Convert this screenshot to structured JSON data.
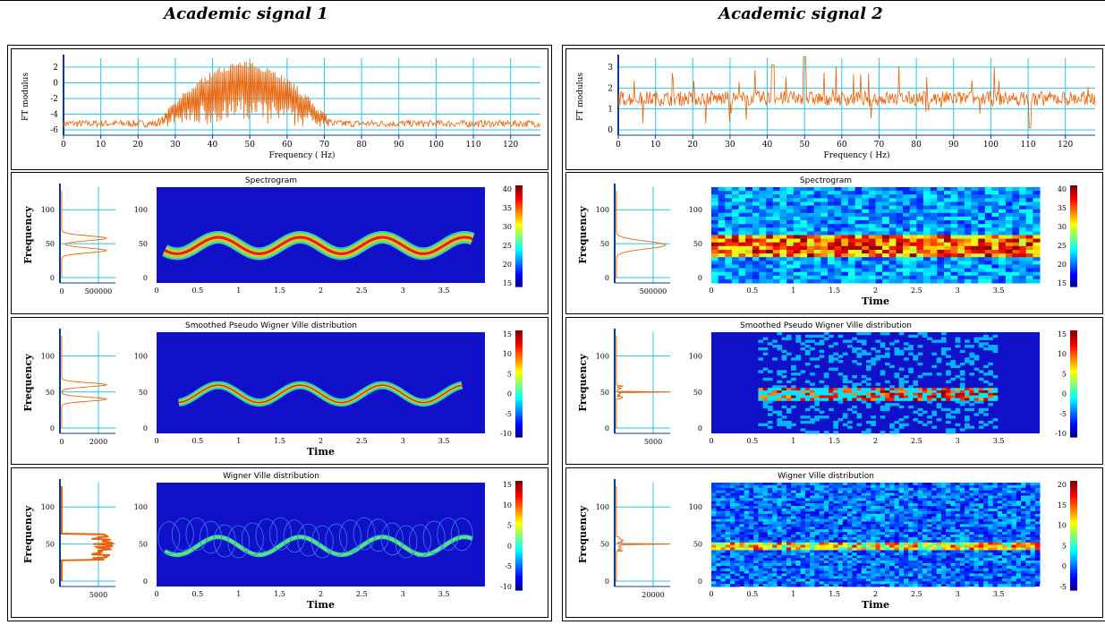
{
  "columns": [
    {
      "title": "Academic signal 1",
      "ft": {
        "ylabel": "FT modulus",
        "xlabel": "Frequency ( Hz)",
        "yticks": [
          "2",
          "0",
          "-2",
          "-4",
          "-6"
        ],
        "xticks": [
          "0",
          "10",
          "20",
          "30",
          "40",
          "50",
          "60",
          "70",
          "80",
          "90",
          "100",
          "110",
          "120"
        ]
      },
      "rows": [
        {
          "title": "Spectrogram",
          "ylabel": "Frequency",
          "xlabel": "",
          "marg_yticks": [
            "100",
            "50",
            "0"
          ],
          "marg_xticks": [
            "0",
            "500000"
          ],
          "tfr_yticks": [
            "100",
            "50",
            "0"
          ],
          "tfr_xticks": [
            "0",
            "0.5",
            "1",
            "1.5",
            "2",
            "2.5",
            "3",
            "3.5"
          ],
          "cbar_ticks": [
            "40",
            "35",
            "30",
            "25",
            "20",
            "15"
          ]
        },
        {
          "title": "Smoothed Pseudo Wigner Ville distribution",
          "ylabel": "Frequency",
          "xlabel": "Time",
          "marg_yticks": [
            "100",
            "50",
            "0"
          ],
          "marg_xticks": [
            "0",
            "2000"
          ],
          "tfr_yticks": [
            "100",
            "50",
            "0"
          ],
          "tfr_xticks": [
            "0",
            "0.5",
            "1",
            "1.5",
            "2",
            "2.5",
            "3",
            "3.5"
          ],
          "cbar_ticks": [
            "15",
            "10",
            "5",
            "0",
            "-5",
            "-10"
          ]
        },
        {
          "title": "Wigner Ville distribution",
          "ylabel": "Frequency",
          "xlabel": "Time",
          "marg_yticks": [
            "100",
            "50",
            "0"
          ],
          "marg_xticks": [
            "5000"
          ],
          "tfr_yticks": [
            "100",
            "50",
            "0"
          ],
          "tfr_xticks": [
            "0",
            "0.5",
            "1",
            "1.5",
            "2",
            "2.5",
            "3",
            "3.5"
          ],
          "cbar_ticks": [
            "15",
            "10",
            "5",
            "0",
            "-5",
            "-10"
          ]
        }
      ]
    },
    {
      "title": "Academic signal 2",
      "ft": {
        "ylabel": "FT modulus",
        "xlabel": "Frequency ( Hz)",
        "yticks": [
          "3",
          "2",
          "1",
          "0"
        ],
        "xticks": [
          "0",
          "10",
          "20",
          "30",
          "40",
          "50",
          "60",
          "70",
          "80",
          "90",
          "100",
          "110",
          "120"
        ]
      },
      "rows": [
        {
          "title": "Spectrogram",
          "ylabel": "Frequency",
          "xlabel": "Time",
          "marg_yticks": [
            "100",
            "50",
            "0"
          ],
          "marg_xticks": [
            "500000"
          ],
          "tfr_yticks": [
            "100",
            "50",
            "0"
          ],
          "tfr_xticks": [
            "0",
            "0.5",
            "1",
            "1.5",
            "2",
            "2.5",
            "3",
            "3.5"
          ],
          "cbar_ticks": [
            "40",
            "35",
            "30",
            "25",
            "20",
            "15"
          ]
        },
        {
          "title": "Smoothed Pseudo Wigner Ville distribution",
          "ylabel": "Frequency",
          "xlabel": "",
          "marg_yticks": [
            "100",
            "50",
            "0"
          ],
          "marg_xticks": [
            "5000"
          ],
          "tfr_yticks": [
            "100",
            "50",
            "0"
          ],
          "tfr_xticks": [
            "0",
            "0.5",
            "1",
            "1.5",
            "2",
            "2.5",
            "3",
            "3.5"
          ],
          "cbar_ticks": [
            "15",
            "10",
            "5",
            "0",
            "-5",
            "-10"
          ]
        },
        {
          "title": "Wigner Ville distribution",
          "ylabel": "Frequency",
          "xlabel": "Time",
          "marg_yticks": [
            "100",
            "50",
            "0"
          ],
          "marg_xticks": [
            "20000"
          ],
          "tfr_yticks": [
            "100",
            "50",
            "0"
          ],
          "tfr_xticks": [
            "0",
            "0.5",
            "1",
            "1.5",
            "2",
            "2.5",
            "3",
            "3.5"
          ],
          "cbar_ticks": [
            "20",
            "15",
            "10",
            "5",
            "0",
            "-5"
          ]
        }
      ]
    }
  ],
  "colors": {
    "trace": "#e8640a",
    "grid": "#2ec4e6",
    "axis": "#0b3b8f",
    "tfr_background": "#1010c8"
  }
}
